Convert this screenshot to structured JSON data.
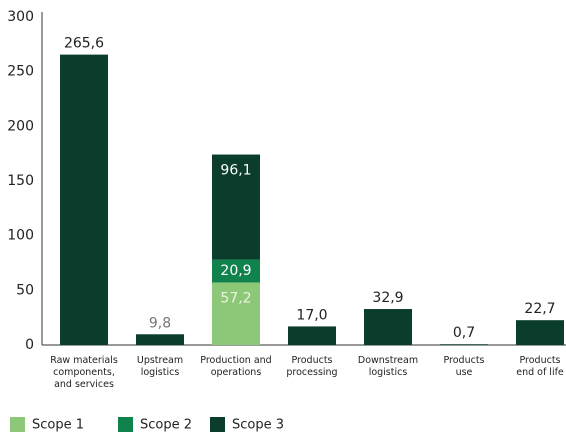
{
  "chart_data": {
    "type": "stacked_bar",
    "categories": [
      "Raw materials\ncomponents,\nand services",
      "Upstream\nlogistics",
      "Production and\noperations",
      "Products\nprocessing",
      "Downstream\nlogistics",
      "Products\nuse",
      "Products\nend of life"
    ],
    "series": [
      {
        "name": "Scope 1",
        "color": "#8dc878",
        "values": [
          null,
          null,
          57.2,
          null,
          null,
          null,
          null
        ],
        "value_labels": [
          null,
          null,
          "57,2",
          null,
          null,
          null,
          null
        ]
      },
      {
        "name": "Scope 2",
        "color": "#10824e",
        "values": [
          null,
          null,
          20.9,
          null,
          null,
          null,
          null
        ],
        "value_labels": [
          null,
          null,
          "20,9",
          null,
          null,
          null,
          null
        ]
      },
      {
        "name": "Scope 3",
        "color": "#0b3d2c",
        "values": [
          265.6,
          9.8,
          96.1,
          17.0,
          32.9,
          0.7,
          22.7
        ],
        "value_labels": [
          "265,6",
          "9,8",
          "96,1",
          "17,0",
          "32,9",
          "0,7",
          "22,7"
        ]
      }
    ],
    "ylim": [
      0,
      300
    ],
    "yticks": [
      0,
      50,
      100,
      150,
      200,
      250,
      300
    ],
    "grid": false,
    "legend": "bottom-left"
  }
}
